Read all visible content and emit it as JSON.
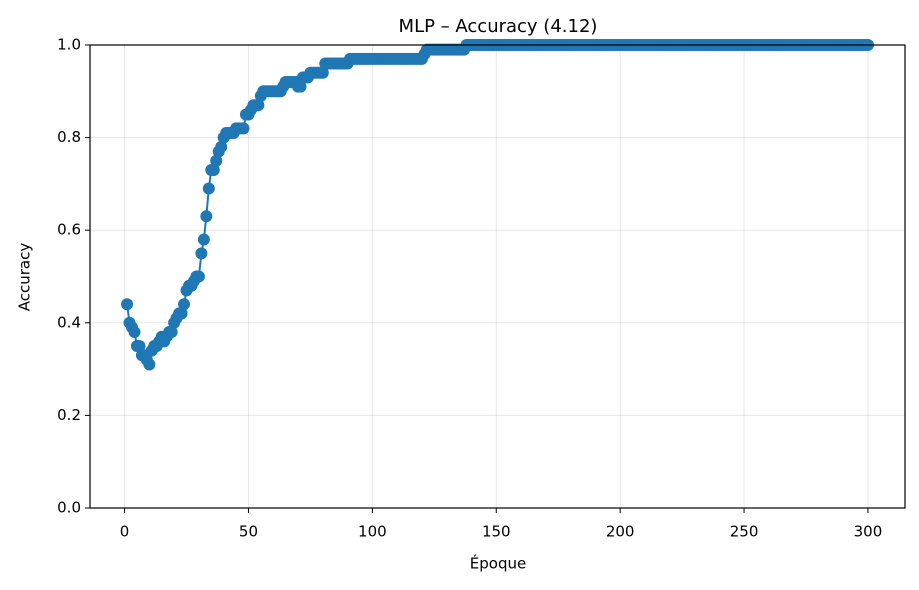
{
  "chart_data": {
    "type": "line",
    "title": "MLP – Accuracy (4.12)",
    "xlabel": "Époque",
    "ylabel": "Accuracy",
    "x": [
      1,
      2,
      3,
      4,
      5,
      6,
      7,
      8,
      9,
      10,
      11,
      12,
      13,
      14,
      15,
      16,
      17,
      18,
      19,
      20,
      21,
      22,
      23,
      24,
      25,
      26,
      27,
      28,
      29,
      30,
      31,
      32,
      33,
      34,
      35,
      36,
      37,
      38,
      39,
      40,
      41,
      42,
      43,
      44,
      45,
      46,
      47,
      48,
      49,
      50,
      51,
      52,
      53,
      54,
      55,
      56,
      57,
      58,
      59,
      60,
      61,
      62,
      63,
      64,
      65,
      66,
      67,
      68,
      69,
      70,
      71,
      72,
      73,
      74,
      75,
      76,
      77,
      78,
      79,
      80,
      81,
      82,
      83,
      84,
      85,
      86,
      87,
      88,
      89,
      90,
      91,
      92,
      93,
      94,
      95,
      96,
      97,
      98,
      99,
      100,
      101,
      102,
      103,
      104,
      105,
      106,
      107,
      108,
      109,
      110,
      111,
      112,
      113,
      114,
      115,
      116,
      117,
      118,
      119,
      120,
      121,
      122,
      123,
      124,
      125,
      126,
      127,
      128,
      129,
      130,
      131,
      132,
      133,
      134,
      135,
      136,
      137,
      138,
      139,
      140,
      141,
      142,
      143,
      144,
      145,
      146,
      147,
      148,
      149,
      150,
      151,
      152,
      153,
      154,
      155,
      156,
      157,
      158,
      159,
      160,
      161,
      162,
      163,
      164,
      165,
      166,
      167,
      168,
      169,
      170,
      171,
      172,
      173,
      174,
      175,
      176,
      177,
      178,
      179,
      180,
      181,
      182,
      183,
      184,
      185,
      186,
      187,
      188,
      189,
      190,
      191,
      192,
      193,
      194,
      195,
      196,
      197,
      198,
      199,
      200,
      201,
      202,
      203,
      204,
      205,
      206,
      207,
      208,
      209,
      210,
      211,
      212,
      213,
      214,
      215,
      216,
      217,
      218,
      219,
      220,
      221,
      222,
      223,
      224,
      225,
      226,
      227,
      228,
      229,
      230,
      231,
      232,
      233,
      234,
      235,
      236,
      237,
      238,
      239,
      240,
      241,
      242,
      243,
      244,
      245,
      246,
      247,
      248,
      249,
      250,
      251,
      252,
      253,
      254,
      255,
      256,
      257,
      258,
      259,
      260,
      261,
      262,
      263,
      264,
      265,
      266,
      267,
      268,
      269,
      270,
      271,
      272,
      273,
      274,
      275,
      276,
      277,
      278,
      279,
      280,
      281,
      282,
      283,
      284,
      285,
      286,
      287,
      288,
      289,
      290,
      291,
      292,
      293,
      294,
      295,
      296,
      297,
      298,
      299,
      300
    ],
    "series": [
      {
        "color": "#1f77b4",
        "values": [
          0.44,
          0.4,
          0.39,
          0.38,
          0.35,
          0.35,
          0.33,
          0.33,
          0.32,
          0.31,
          0.34,
          0.35,
          0.35,
          0.36,
          0.37,
          0.36,
          0.37,
          0.38,
          0.38,
          0.4,
          0.41,
          0.42,
          0.42,
          0.44,
          0.47,
          0.48,
          0.48,
          0.49,
          0.5,
          0.5,
          0.55,
          0.58,
          0.63,
          0.69,
          0.73,
          0.73,
          0.75,
          0.77,
          0.78,
          0.8,
          0.81,
          0.81,
          0.81,
          0.81,
          0.82,
          0.82,
          0.82,
          0.82,
          0.85,
          0.85,
          0.86,
          0.87,
          0.87,
          0.87,
          0.89,
          0.9,
          0.9,
          0.9,
          0.9,
          0.9,
          0.9,
          0.9,
          0.9,
          0.91,
          0.92,
          0.92,
          0.92,
          0.92,
          0.92,
          0.91,
          0.91,
          0.93,
          0.93,
          0.93,
          0.94,
          0.94,
          0.94,
          0.94,
          0.94,
          0.94,
          0.96,
          0.96,
          0.96,
          0.96,
          0.96,
          0.96,
          0.96,
          0.96,
          0.96,
          0.96,
          0.97,
          0.97,
          0.97,
          0.97,
          0.97,
          0.97,
          0.97,
          0.97,
          0.97,
          0.97,
          0.97,
          0.97,
          0.97,
          0.97,
          0.97,
          0.97,
          0.97,
          0.97,
          0.97,
          0.97,
          0.97,
          0.97,
          0.97,
          0.97,
          0.97,
          0.97,
          0.97,
          0.97,
          0.97,
          0.97,
          0.98,
          0.99,
          0.99,
          0.99,
          0.99,
          0.99,
          0.99,
          0.99,
          0.99,
          0.99,
          0.99,
          0.99,
          0.99,
          0.99,
          0.99,
          0.99,
          0.99,
          1,
          1,
          1,
          1,
          1,
          1,
          1,
          1,
          1,
          1,
          1,
          1,
          1,
          1,
          1,
          1,
          1,
          1,
          1,
          1,
          1,
          1,
          1,
          1,
          1,
          1,
          1,
          1,
          1,
          1,
          1,
          1,
          1,
          1,
          1,
          1,
          1,
          1,
          1,
          1,
          1,
          1,
          1,
          1,
          1,
          1,
          1,
          1,
          1,
          1,
          1,
          1,
          1,
          1,
          1,
          1,
          1,
          1,
          1,
          1,
          1,
          1,
          1,
          1,
          1,
          1,
          1,
          1,
          1,
          1,
          1,
          1,
          1,
          1,
          1,
          1,
          1,
          1,
          1,
          1,
          1,
          1,
          1,
          1,
          1,
          1,
          1,
          1,
          1,
          1,
          1,
          1,
          1,
          1,
          1,
          1,
          1,
          1,
          1,
          1,
          1,
          1,
          1,
          1,
          1,
          1,
          1,
          1,
          1,
          1,
          1,
          1,
          1,
          1,
          1,
          1,
          1,
          1,
          1,
          1,
          1,
          1,
          1,
          1,
          1,
          1,
          1,
          1,
          1,
          1,
          1,
          1,
          1,
          1,
          1,
          1,
          1,
          1,
          1,
          1,
          1,
          1,
          1,
          1,
          1,
          1,
          1,
          1,
          1,
          1,
          1,
          1,
          1,
          1,
          1,
          1,
          1,
          1,
          1,
          1,
          1,
          1,
          1
        ]
      }
    ],
    "xlim": [
      -13.95,
      314.95
    ],
    "xticks": [
      0,
      50,
      100,
      150,
      200,
      250,
      300
    ],
    "ylim": [
      0,
      1
    ],
    "yticks": [
      {
        "value": 0,
        "label": "0.0"
      },
      0.2,
      0.4,
      0.6,
      0.8,
      {
        "value": 1,
        "label": "1.0"
      }
    ],
    "grid": true
  }
}
